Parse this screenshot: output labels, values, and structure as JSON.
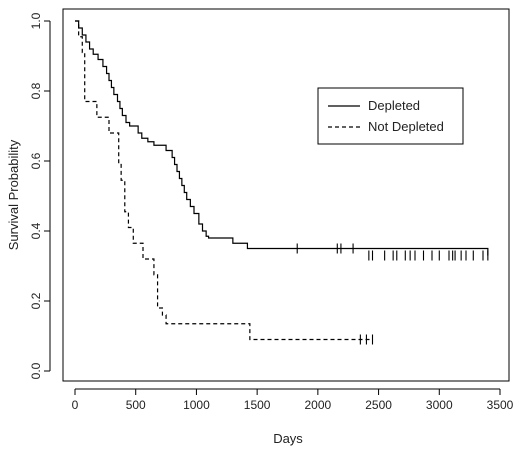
{
  "chart_data": {
    "type": "line",
    "subtype": "kaplan-meier survival curves",
    "title": "",
    "xlabel": "Days",
    "ylabel": "Survival Probability",
    "xlim": [
      0,
      3500
    ],
    "ylim": [
      0,
      1
    ],
    "x_ticks": [
      0,
      500,
      1000,
      1500,
      2000,
      2500,
      3000,
      3500
    ],
    "y_ticks": [
      0.0,
      0.2,
      0.4,
      0.6,
      0.8,
      1.0
    ],
    "x_tick_labels": [
      "0",
      "500",
      "1000",
      "1500",
      "2000",
      "2500",
      "3000",
      "3500"
    ],
    "y_tick_labels": [
      "0.0",
      "0.2",
      "0.4",
      "0.6",
      "0.8",
      "1.0"
    ],
    "grid": false,
    "legend_position": "top-right",
    "series": [
      {
        "name": "Depleted",
        "line_style": "solid",
        "color": "#000000",
        "steps": [
          [
            0,
            1.0
          ],
          [
            30,
            0.98
          ],
          [
            60,
            0.96
          ],
          [
            90,
            0.94
          ],
          [
            120,
            0.92
          ],
          [
            150,
            0.905
          ],
          [
            190,
            0.89
          ],
          [
            230,
            0.87
          ],
          [
            260,
            0.85
          ],
          [
            280,
            0.83
          ],
          [
            300,
            0.81
          ],
          [
            320,
            0.79
          ],
          [
            350,
            0.77
          ],
          [
            370,
            0.75
          ],
          [
            390,
            0.73
          ],
          [
            420,
            0.71
          ],
          [
            450,
            0.7
          ],
          [
            520,
            0.68
          ],
          [
            550,
            0.665
          ],
          [
            600,
            0.655
          ],
          [
            650,
            0.645
          ],
          [
            750,
            0.63
          ],
          [
            800,
            0.61
          ],
          [
            820,
            0.59
          ],
          [
            840,
            0.57
          ],
          [
            860,
            0.55
          ],
          [
            880,
            0.53
          ],
          [
            900,
            0.51
          ],
          [
            920,
            0.49
          ],
          [
            950,
            0.47
          ],
          [
            980,
            0.45
          ],
          [
            1020,
            0.42
          ],
          [
            1050,
            0.4
          ],
          [
            1080,
            0.385
          ],
          [
            1100,
            0.38
          ],
          [
            1300,
            0.365
          ],
          [
            1420,
            0.35
          ],
          [
            1700,
            0.35
          ],
          [
            3400,
            0.33
          ]
        ],
        "x_end": 3400,
        "censor_x": [
          1830,
          2160,
          2190,
          2290,
          2420,
          2450,
          2550,
          2620,
          2650,
          2720,
          2760,
          2800,
          2870,
          2940,
          3000,
          3080,
          3110,
          3130,
          3180,
          3220,
          3280,
          3360,
          3400
        ],
        "censor_y": [
          0.35,
          0.35,
          0.35,
          0.35,
          0.33,
          0.33,
          0.33,
          0.33,
          0.33,
          0.33,
          0.33,
          0.33,
          0.33,
          0.33,
          0.33,
          0.33,
          0.33,
          0.33,
          0.33,
          0.33,
          0.33,
          0.33,
          0.33
        ]
      },
      {
        "name": "Not Depleted",
        "line_style": "dashed",
        "color": "#000000",
        "steps": [
          [
            0,
            1.0
          ],
          [
            30,
            0.955
          ],
          [
            60,
            0.91
          ],
          [
            80,
            0.77
          ],
          [
            180,
            0.725
          ],
          [
            280,
            0.68
          ],
          [
            360,
            0.59
          ],
          [
            380,
            0.545
          ],
          [
            410,
            0.455
          ],
          [
            440,
            0.41
          ],
          [
            480,
            0.365
          ],
          [
            560,
            0.32
          ],
          [
            650,
            0.275
          ],
          [
            680,
            0.18
          ],
          [
            720,
            0.16
          ],
          [
            750,
            0.135
          ],
          [
            1440,
            0.09
          ]
        ],
        "x_end": 2450,
        "censor_x": [
          2350,
          2400,
          2450
        ],
        "censor_y": [
          0.09,
          0.09,
          0.09
        ]
      }
    ]
  }
}
